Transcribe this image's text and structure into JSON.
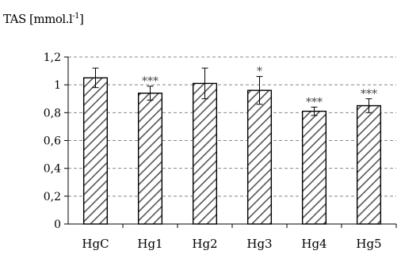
{
  "chart_data": {
    "type": "bar",
    "ylabel": "TAS [mmol.l",
    "ylabel_sup": "-1",
    "ylabel_end": "]",
    "categories": [
      "HgC",
      "Hg1",
      "Hg2",
      "Hg3",
      "Hg4",
      "Hg5"
    ],
    "values": [
      1.05,
      0.94,
      1.01,
      0.96,
      0.81,
      0.85
    ],
    "error": [
      0.07,
      0.05,
      0.11,
      0.1,
      0.03,
      0.05
    ],
    "significance": [
      "",
      "***",
      "",
      "*",
      "***",
      "***"
    ],
    "ylim": [
      0,
      1.2
    ],
    "yticks": [
      "0",
      "0,2",
      "0,4",
      "0,6",
      "0,8",
      "1",
      "1,2"
    ],
    "grid": true,
    "bar_pattern": "diagonal-hatch"
  }
}
